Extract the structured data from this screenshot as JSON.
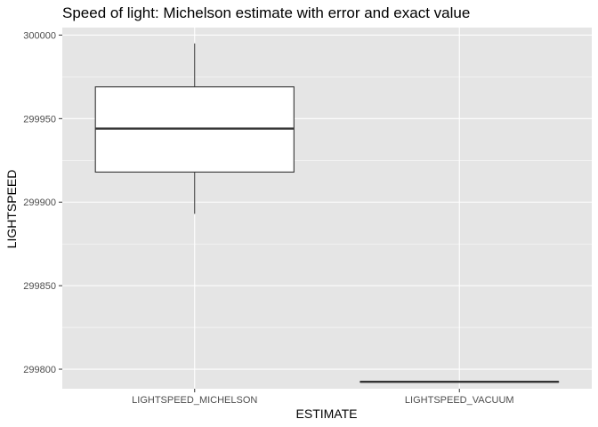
{
  "chart_data": {
    "type": "boxplot",
    "title": "Speed of light: Michelson estimate with error and exact value",
    "xlabel": "ESTIMATE",
    "ylabel": "LIGHTSPEED",
    "categories": [
      "LIGHTSPEED_MICHELSON",
      "LIGHTSPEED_VACUUM"
    ],
    "boxes": [
      {
        "category": "LIGHTSPEED_MICHELSON",
        "whisker_low": 299893,
        "q1": 299918,
        "median": 299944,
        "q3": 299969,
        "whisker_high": 299995
      },
      {
        "category": "LIGHTSPEED_VACUUM",
        "whisker_low": 299792.458,
        "q1": 299792.458,
        "median": 299792.458,
        "q3": 299792.458,
        "whisker_high": 299792.458
      }
    ],
    "yticks": [
      299800,
      299850,
      299900,
      299950,
      300000
    ],
    "ytick_labels": [
      "299800",
      "299850",
      "299900",
      "299950",
      "300000"
    ],
    "ylim": [
      299788.3,
      300004.5
    ],
    "grid": true,
    "legend": "none",
    "colors": {
      "panel": "#e5e5e5",
      "grid": "#ffffff",
      "box_fill": "#ffffff",
      "box_stroke": "#333333"
    }
  }
}
